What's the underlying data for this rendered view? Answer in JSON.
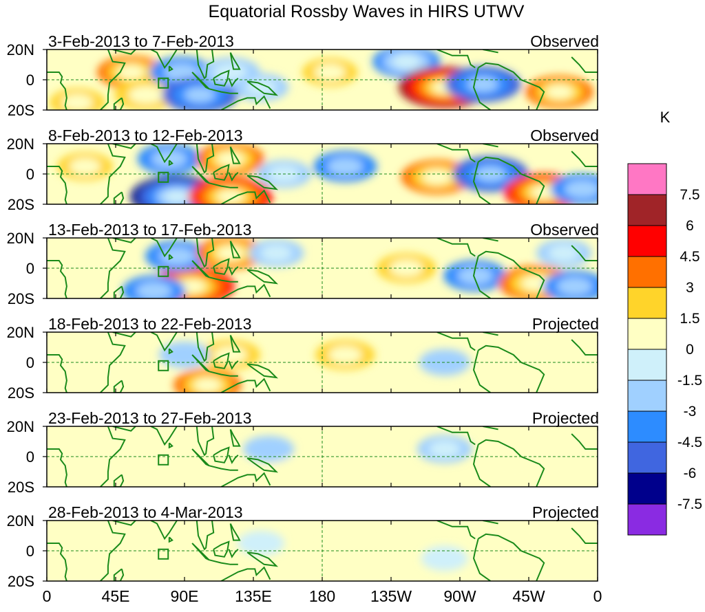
{
  "chart_data": {
    "type": "heatmap",
    "title": "Equatorial Rossby Waves in HIRS UTWV",
    "variable": "UTWV anomaly",
    "units": "K",
    "lat_labels": [
      "20N",
      "0",
      "20S"
    ],
    "lon_labels": [
      "0",
      "45E",
      "90E",
      "135E",
      "180",
      "135W",
      "90W",
      "45W",
      "0"
    ],
    "lon_range": [
      0,
      360
    ],
    "lat_range": [
      -20,
      20
    ],
    "colorbar": {
      "levels": [
        "7.5",
        "6",
        "4.5",
        "3",
        "1.5",
        "0",
        "-1.5",
        "-3",
        "-4.5",
        "-6",
        "-7.5"
      ],
      "colors": [
        "#ff77c4",
        "#a02428",
        "#ff0000",
        "#ff7000",
        "#ffd42a",
        "#ffffc4",
        "#cff0fa",
        "#a0d0ff",
        "#2d8cff",
        "#4066e0",
        "#00008c",
        "#8a2be2"
      ]
    },
    "panels": [
      {
        "period": "3-Feb-2013 to 7-Feb-2013",
        "status": "Observed",
        "anomalies": [
          {
            "lon": 55,
            "lat": 5,
            "value": 3.5
          },
          {
            "lon": 65,
            "lat": -10,
            "value": 3.0
          },
          {
            "lon": 88,
            "lat": 5,
            "value": -3.0
          },
          {
            "lon": 100,
            "lat": -10,
            "value": -4.5
          },
          {
            "lon": 120,
            "lat": 5,
            "value": -2.5
          },
          {
            "lon": 140,
            "lat": -5,
            "value": -2.0
          },
          {
            "lon": 185,
            "lat": 5,
            "value": 2.0
          },
          {
            "lon": 235,
            "lat": 12,
            "value": -3.5
          },
          {
            "lon": 260,
            "lat": -5,
            "value": 6.5
          },
          {
            "lon": 285,
            "lat": -3,
            "value": -4.5
          },
          {
            "lon": 335,
            "lat": -8,
            "value": 3.5
          },
          {
            "lon": 20,
            "lat": -15,
            "value": 2.0
          }
        ]
      },
      {
        "period": "8-Feb-2013 to 12-Feb-2013",
        "status": "Observed",
        "anomalies": [
          {
            "lon": 25,
            "lat": 5,
            "value": 2.0
          },
          {
            "lon": 80,
            "lat": 10,
            "value": -3.0
          },
          {
            "lon": 85,
            "lat": -15,
            "value": -6.5
          },
          {
            "lon": 120,
            "lat": 10,
            "value": 3.5
          },
          {
            "lon": 120,
            "lat": -15,
            "value": 5.5
          },
          {
            "lon": 155,
            "lat": 0,
            "value": -2.0
          },
          {
            "lon": 195,
            "lat": 5,
            "value": -3.0
          },
          {
            "lon": 255,
            "lat": -2,
            "value": 4.0
          },
          {
            "lon": 290,
            "lat": 0,
            "value": -4.5
          },
          {
            "lon": 325,
            "lat": -12,
            "value": 5.0
          },
          {
            "lon": 350,
            "lat": -10,
            "value": -3.0
          }
        ]
      },
      {
        "period": "13-Feb-2013 to 17-Feb-2013",
        "status": "Observed",
        "anomalies": [
          {
            "lon": 95,
            "lat": -12,
            "value": 5.5
          },
          {
            "lon": 85,
            "lat": 8,
            "value": -3.0
          },
          {
            "lon": 70,
            "lat": -15,
            "value": -3.0
          },
          {
            "lon": 120,
            "lat": 10,
            "value": 3.5
          },
          {
            "lon": 150,
            "lat": 10,
            "value": -2.0
          },
          {
            "lon": 235,
            "lat": 0,
            "value": 2.5
          },
          {
            "lon": 280,
            "lat": -5,
            "value": -3.0
          },
          {
            "lon": 320,
            "lat": -10,
            "value": 4.5
          },
          {
            "lon": 338,
            "lat": 10,
            "value": -2.0
          },
          {
            "lon": 345,
            "lat": -12,
            "value": -3.0
          }
        ]
      },
      {
        "period": "18-Feb-2013 to 22-Feb-2013",
        "status": "Projected",
        "anomalies": [
          {
            "lon": 105,
            "lat": -15,
            "value": 3.5
          },
          {
            "lon": 120,
            "lat": 5,
            "value": 2.5
          },
          {
            "lon": 90,
            "lat": 5,
            "value": -1.5
          },
          {
            "lon": 195,
            "lat": 5,
            "value": 2.5
          },
          {
            "lon": 260,
            "lat": 0,
            "value": -1.5
          },
          {
            "lon": 320,
            "lat": 10,
            "value": 1.5
          },
          {
            "lon": 345,
            "lat": -5,
            "value": 1.5
          }
        ]
      },
      {
        "period": "23-Feb-2013 to 27-Feb-2013",
        "status": "Projected",
        "anomalies": [
          {
            "lon": 145,
            "lat": 5,
            "value": -1.5
          },
          {
            "lon": 160,
            "lat": -10,
            "value": 1.0
          },
          {
            "lon": 260,
            "lat": 5,
            "value": -2.0
          },
          {
            "lon": 305,
            "lat": -10,
            "value": 1.0
          }
        ]
      },
      {
        "period": "28-Feb-2013 to 4-Mar-2013",
        "status": "Projected",
        "anomalies": [
          {
            "lon": 140,
            "lat": 5,
            "value": -1.0
          },
          {
            "lon": 195,
            "lat": 8,
            "value": 0.8
          },
          {
            "lon": 260,
            "lat": -5,
            "value": -1.0
          }
        ]
      }
    ]
  }
}
